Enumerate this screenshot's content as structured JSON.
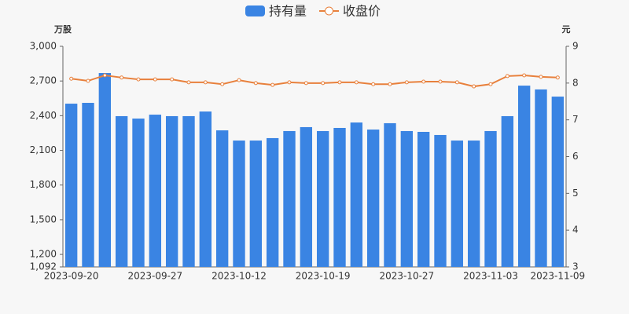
{
  "chart_data": {
    "type": "bar-line",
    "y_label": "万股",
    "y2_label": "元",
    "categories": [
      "2023-09-20",
      null,
      null,
      null,
      null,
      "2023-09-27",
      null,
      null,
      null,
      null,
      "2023-10-12",
      null,
      null,
      null,
      null,
      "2023-10-19",
      null,
      null,
      null,
      null,
      "2023-10-27",
      null,
      null,
      null,
      null,
      "2023-11-03",
      null,
      null,
      null,
      "2023-11-09"
    ],
    "series": [
      {
        "name": "持有量",
        "type": "bar",
        "color": "#3a84e3",
        "values": [
          2504,
          2511,
          2769,
          2396,
          2375,
          2409,
          2396,
          2396,
          2436,
          2273,
          2185,
          2185,
          2206,
          2267,
          2301,
          2267,
          2294,
          2341,
          2280,
          2335,
          2267,
          2260,
          2233,
          2185,
          2185,
          2267,
          2396,
          2660,
          2627,
          2565
        ]
      },
      {
        "name": "收盘价",
        "type": "line",
        "axis": "y2",
        "color": "#e8803c",
        "values": [
          8.12,
          8.06,
          8.21,
          8.15,
          8.1,
          8.1,
          8.1,
          8.02,
          8.02,
          7.97,
          8.08,
          8.0,
          7.95,
          8.02,
          8.0,
          8.0,
          8.02,
          8.02,
          7.97,
          7.97,
          8.02,
          8.04,
          8.04,
          8.02,
          7.91,
          7.97,
          8.19,
          8.21,
          8.17,
          8.15
        ]
      }
    ],
    "ylim": [
      1092,
      3000
    ],
    "yticks": [
      {
        "value": 1092,
        "label": "1,092"
      },
      {
        "value": 1200,
        "label": "1,200"
      },
      {
        "value": 1500,
        "label": "1,500"
      },
      {
        "value": 1800,
        "label": "1,800"
      },
      {
        "value": 2100,
        "label": "2,100"
      },
      {
        "value": 2400,
        "label": "2,400"
      },
      {
        "value": 2700,
        "label": "2,700"
      },
      {
        "value": 3000,
        "label": "3,000"
      }
    ],
    "y2lim": [
      3,
      9
    ],
    "y2ticks": [
      3,
      4,
      5,
      6,
      7,
      8,
      9
    ],
    "legend": "top"
  }
}
